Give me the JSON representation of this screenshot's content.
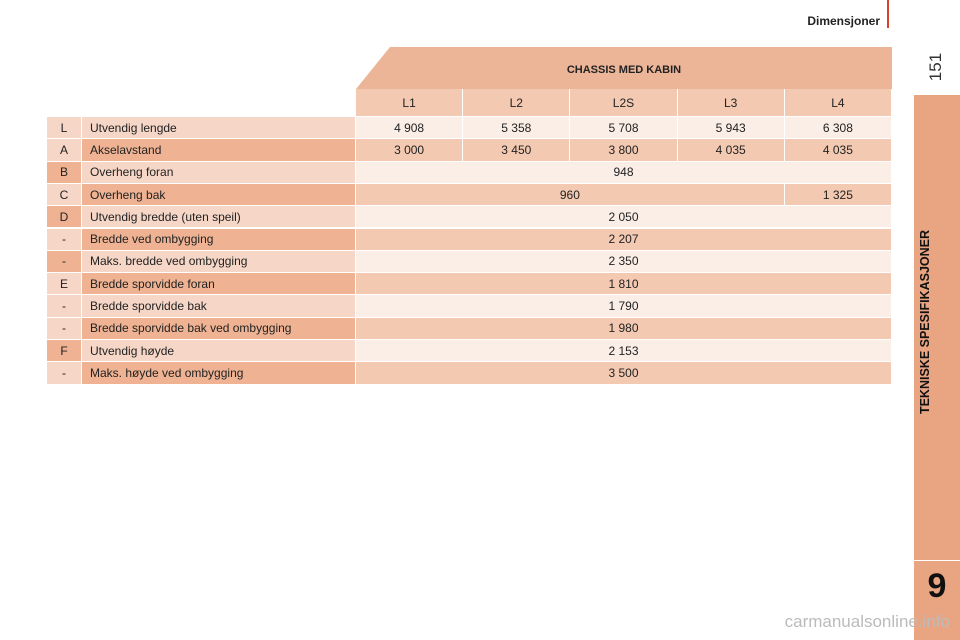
{
  "header": {
    "section": "Dimensjoner",
    "page_number": "151"
  },
  "side_tab": {
    "title": "TEKNISKE SPESIFIKASJONER",
    "chapter": "9"
  },
  "table": {
    "title": "CHASSIS MED KABIN",
    "columns": [
      "L1",
      "L2",
      "L2S",
      "L3",
      "L4"
    ],
    "rows": [
      {
        "code": "L",
        "label": "Utvendig lengde",
        "cells": [
          "4 908",
          "5 358",
          "5 708",
          "5 943",
          "6 308"
        ]
      },
      {
        "code": "A",
        "label": "Akselavstand",
        "cells": [
          "3 000",
          "3 450",
          "3 800",
          "4 035",
          "4 035"
        ]
      },
      {
        "code": "B",
        "label": "Overheng foran",
        "cells": [
          "948"
        ]
      },
      {
        "code": "C",
        "label": "Overheng bak",
        "cells": [
          "960",
          "1 325"
        ]
      },
      {
        "code": "D",
        "label": "Utvendig bredde (uten speil)",
        "cells": [
          "2 050"
        ]
      },
      {
        "code": "-",
        "label": "Bredde ved ombygging",
        "cells": [
          "2 207"
        ]
      },
      {
        "code": "-",
        "label": "Maks. bredde ved ombygging",
        "cells": [
          "2 350"
        ]
      },
      {
        "code": "E",
        "label": "Bredde sporvidde foran",
        "cells": [
          "1 810"
        ]
      },
      {
        "code": "-",
        "label": "Bredde sporvidde bak",
        "cells": [
          "1 790"
        ]
      },
      {
        "code": "-",
        "label": "Bredde sporvidde bak ved ombygging",
        "cells": [
          "1 980"
        ]
      },
      {
        "code": "F",
        "label": "Utvendig høyde",
        "cells": [
          "2 153"
        ]
      },
      {
        "code": "-",
        "label": "Maks. høyde ved ombygging",
        "cells": [
          "3 500"
        ]
      }
    ]
  },
  "watermark": "carmanualsonline.info"
}
